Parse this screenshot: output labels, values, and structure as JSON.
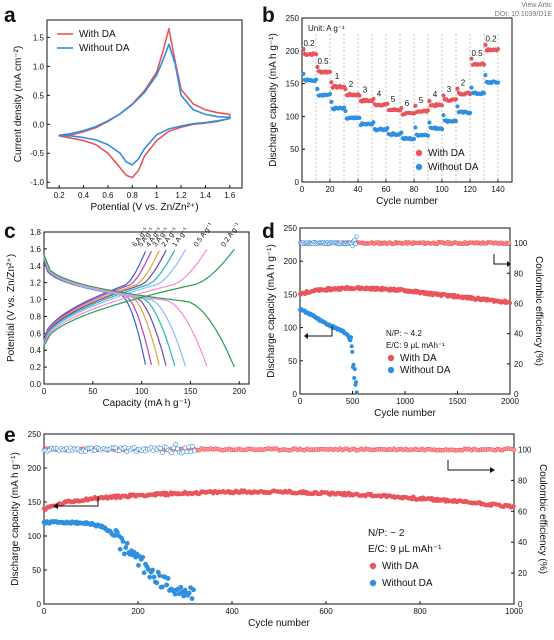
{
  "header": {
    "view_article": "View Artic",
    "doi": "DOI: 10.1039/D1E"
  },
  "colors": {
    "with_da": "#e8555a",
    "without_da": "#2f8fe0",
    "with_da_light": "#ff9b9b",
    "without_da_light": "#8fc5f2"
  },
  "chart_data": [
    {
      "panel": "a",
      "type": "line",
      "xlabel": "Potential (V vs. Zn/Zn²⁺)",
      "ylabel": "Current density (mA cm⁻²)",
      "xlim": [
        0.1,
        1.7
      ],
      "ylim": [
        -1.1,
        1.8
      ],
      "xticks": [
        0.2,
        0.4,
        0.6,
        0.8,
        1.0,
        1.2,
        1.4,
        1.6
      ],
      "yticks": [
        -1.0,
        -0.5,
        0.0,
        0.5,
        1.0,
        1.5
      ],
      "legend": [
        "With DA",
        "Without DA"
      ],
      "series": [
        {
          "name": "With DA",
          "x": [
            0.2,
            0.3,
            0.4,
            0.5,
            0.6,
            0.7,
            0.8,
            0.9,
            1.0,
            1.05,
            1.1,
            1.15,
            1.2,
            1.3,
            1.4,
            1.5,
            1.6,
            1.6,
            1.5,
            1.4,
            1.3,
            1.2,
            1.1,
            1.0,
            0.9,
            0.85,
            0.8,
            0.75,
            0.7,
            0.6,
            0.5,
            0.4,
            0.3,
            0.2
          ],
          "y": [
            -0.2,
            -0.18,
            -0.13,
            -0.06,
            0.05,
            0.18,
            0.35,
            0.58,
            0.9,
            1.25,
            1.65,
            1.1,
            0.6,
            0.35,
            0.25,
            0.2,
            0.17,
            0.1,
            0.05,
            0.02,
            0.0,
            -0.05,
            -0.12,
            -0.28,
            -0.55,
            -0.8,
            -0.92,
            -0.88,
            -0.75,
            -0.5,
            -0.35,
            -0.28,
            -0.24,
            -0.2
          ]
        },
        {
          "name": "Without DA",
          "x": [
            0.2,
            0.3,
            0.4,
            0.5,
            0.6,
            0.7,
            0.8,
            0.9,
            1.0,
            1.05,
            1.1,
            1.15,
            1.2,
            1.3,
            1.4,
            1.5,
            1.6,
            1.6,
            1.5,
            1.4,
            1.3,
            1.2,
            1.1,
            1.0,
            0.9,
            0.85,
            0.8,
            0.75,
            0.7,
            0.6,
            0.5,
            0.4,
            0.3,
            0.2
          ],
          "y": [
            -0.19,
            -0.16,
            -0.11,
            -0.04,
            0.06,
            0.18,
            0.34,
            0.55,
            0.85,
            1.1,
            1.38,
            1.05,
            0.5,
            0.25,
            0.17,
            0.13,
            0.12,
            0.1,
            0.06,
            0.03,
            0.01,
            -0.03,
            -0.08,
            -0.18,
            -0.42,
            -0.6,
            -0.7,
            -0.65,
            -0.5,
            -0.35,
            -0.27,
            -0.23,
            -0.2,
            -0.19
          ]
        }
      ]
    },
    {
      "panel": "b",
      "type": "scatter",
      "xlabel": "Cycle number",
      "ylabel": "Discharge capacity (mA h g⁻¹)",
      "unit_note": "Unit: A g⁻¹",
      "xlim": [
        0,
        150
      ],
      "ylim": [
        0,
        250
      ],
      "xticks": [
        0,
        20,
        40,
        60,
        80,
        100,
        120,
        140
      ],
      "yticks": [
        0,
        50,
        100,
        150,
        200,
        250
      ],
      "legend": [
        "With DA",
        "Without DA"
      ],
      "legend_position": "bottom-right",
      "rate_labels": [
        "0.2",
        "0.5",
        "1",
        "2",
        "3",
        "4",
        "5",
        "6",
        "5",
        "4",
        "3",
        "2",
        "0.5",
        "0.2"
      ],
      "segment_boundaries": [
        10,
        20,
        30,
        40,
        50,
        60,
        70,
        80,
        90,
        100,
        110,
        120,
        130,
        140
      ],
      "series": [
        {
          "name": "With DA",
          "segment_values": [
            195,
            168,
            145,
            133,
            124,
            118,
            110,
            104,
            108,
            117,
            125,
            135,
            180,
            202
          ]
        },
        {
          "name": "Without DA",
          "segment_values": [
            155,
            133,
            112,
            97,
            88,
            80,
            73,
            66,
            72,
            82,
            93,
            106,
            135,
            152
          ]
        }
      ]
    },
    {
      "panel": "c",
      "type": "line",
      "xlabel": "Capacity (mA h g⁻¹)",
      "ylabel": "Potential (V vs. Zn/Zn²⁺)",
      "xlim": [
        0,
        210
      ],
      "ylim": [
        0.0,
        1.8
      ],
      "xticks": [
        0,
        50,
        100,
        150,
        200
      ],
      "yticks": [
        0.0,
        0.2,
        0.4,
        0.6,
        0.8,
        1.0,
        1.2,
        1.4,
        1.6,
        1.8
      ],
      "rate_labels": [
        "6 A g⁻¹",
        "5 A g⁻¹",
        "4 A g⁻¹",
        "3 A g⁻¹",
        "2 A g⁻¹",
        "1 A g⁻¹",
        "0.5 A g⁻¹",
        "0.2 A g⁻¹"
      ],
      "capacities": [
        104,
        110,
        118,
        125,
        134,
        145,
        167,
        195
      ],
      "curve_colors": [
        "#3b5bdb",
        "#c03fb5",
        "#e6a23c",
        "#6d4aa8",
        "#20b8b0",
        "#8fb8ff",
        "#f58bd0",
        "#27a04a"
      ]
    },
    {
      "panel": "d",
      "type": "scatter",
      "xlabel": "Cycle number",
      "ylabel": "Discharge capacity (mA h g⁻¹)",
      "y2label": "Coulombic efficiency (%)",
      "xlim": [
        0,
        2000
      ],
      "ylim": [
        0,
        250
      ],
      "y2lim": [
        0,
        110
      ],
      "xticks": [
        0,
        500,
        1000,
        1500,
        2000
      ],
      "yticks": [
        0,
        50,
        100,
        150,
        200,
        250
      ],
      "y2ticks": [
        0,
        20,
        40,
        60,
        80,
        100
      ],
      "annotations": [
        "N/P: ~ 4.2",
        "E/C: 9 μL mAh⁻¹"
      ],
      "legend": [
        "With DA",
        "Without DA"
      ],
      "series": [
        {
          "name": "With DA",
          "capacity": {
            "x": [
              0,
              100,
              300,
              500,
              800,
              1000,
              1300,
              1600,
              2000
            ],
            "y": [
              150,
              155,
              158,
              160,
              158,
              156,
              150,
              145,
              138
            ]
          },
          "ce_percent": 100
        },
        {
          "name": "Without DA",
          "capacity": {
            "x": [
              0,
              100,
              200,
              300,
              400,
              450,
              480,
              500,
              520,
              540
            ],
            "y": [
              128,
              120,
              110,
              102,
              95,
              90,
              80,
              50,
              25,
              10
            ]
          },
          "ce_percent": 100,
          "cycles": 540
        }
      ]
    },
    {
      "panel": "e",
      "type": "scatter",
      "xlabel": "Cycle number",
      "ylabel": "Discharge capacity (mA h g⁻¹)",
      "y2label": "Coulombic efficiency (%)",
      "xlim": [
        0,
        1000
      ],
      "ylim": [
        0,
        250
      ],
      "y2lim": [
        0,
        110
      ],
      "xticks": [
        0,
        200,
        400,
        600,
        800,
        1000
      ],
      "yticks": [
        0,
        50,
        100,
        150,
        200,
        250
      ],
      "y2ticks": [
        0,
        20,
        40,
        60,
        80,
        100
      ],
      "annotations": [
        "N/P: ~ 2",
        "E/C: 9 μL mAh⁻¹"
      ],
      "legend": [
        "With DA",
        "Without DA"
      ],
      "series": [
        {
          "name": "With DA",
          "capacity": {
            "x": [
              0,
              50,
              100,
              200,
              300,
              400,
              500,
              600,
              700,
              800,
              900,
              1000
            ],
            "y": [
              140,
              150,
              155,
              160,
              163,
              165,
              165,
              163,
              160,
              155,
              150,
              143
            ]
          },
          "ce_percent": 100
        },
        {
          "name": "Without DA",
          "capacity": {
            "x": [
              0,
              50,
              100,
              130,
              150,
              170,
              200,
              230,
              260,
              290,
              320
            ],
            "y": [
              120,
              120,
              118,
              112,
              100,
              85,
              65,
              45,
              30,
              20,
              15
            ]
          },
          "ce_percent": 100,
          "cycles": 320
        }
      ]
    }
  ]
}
